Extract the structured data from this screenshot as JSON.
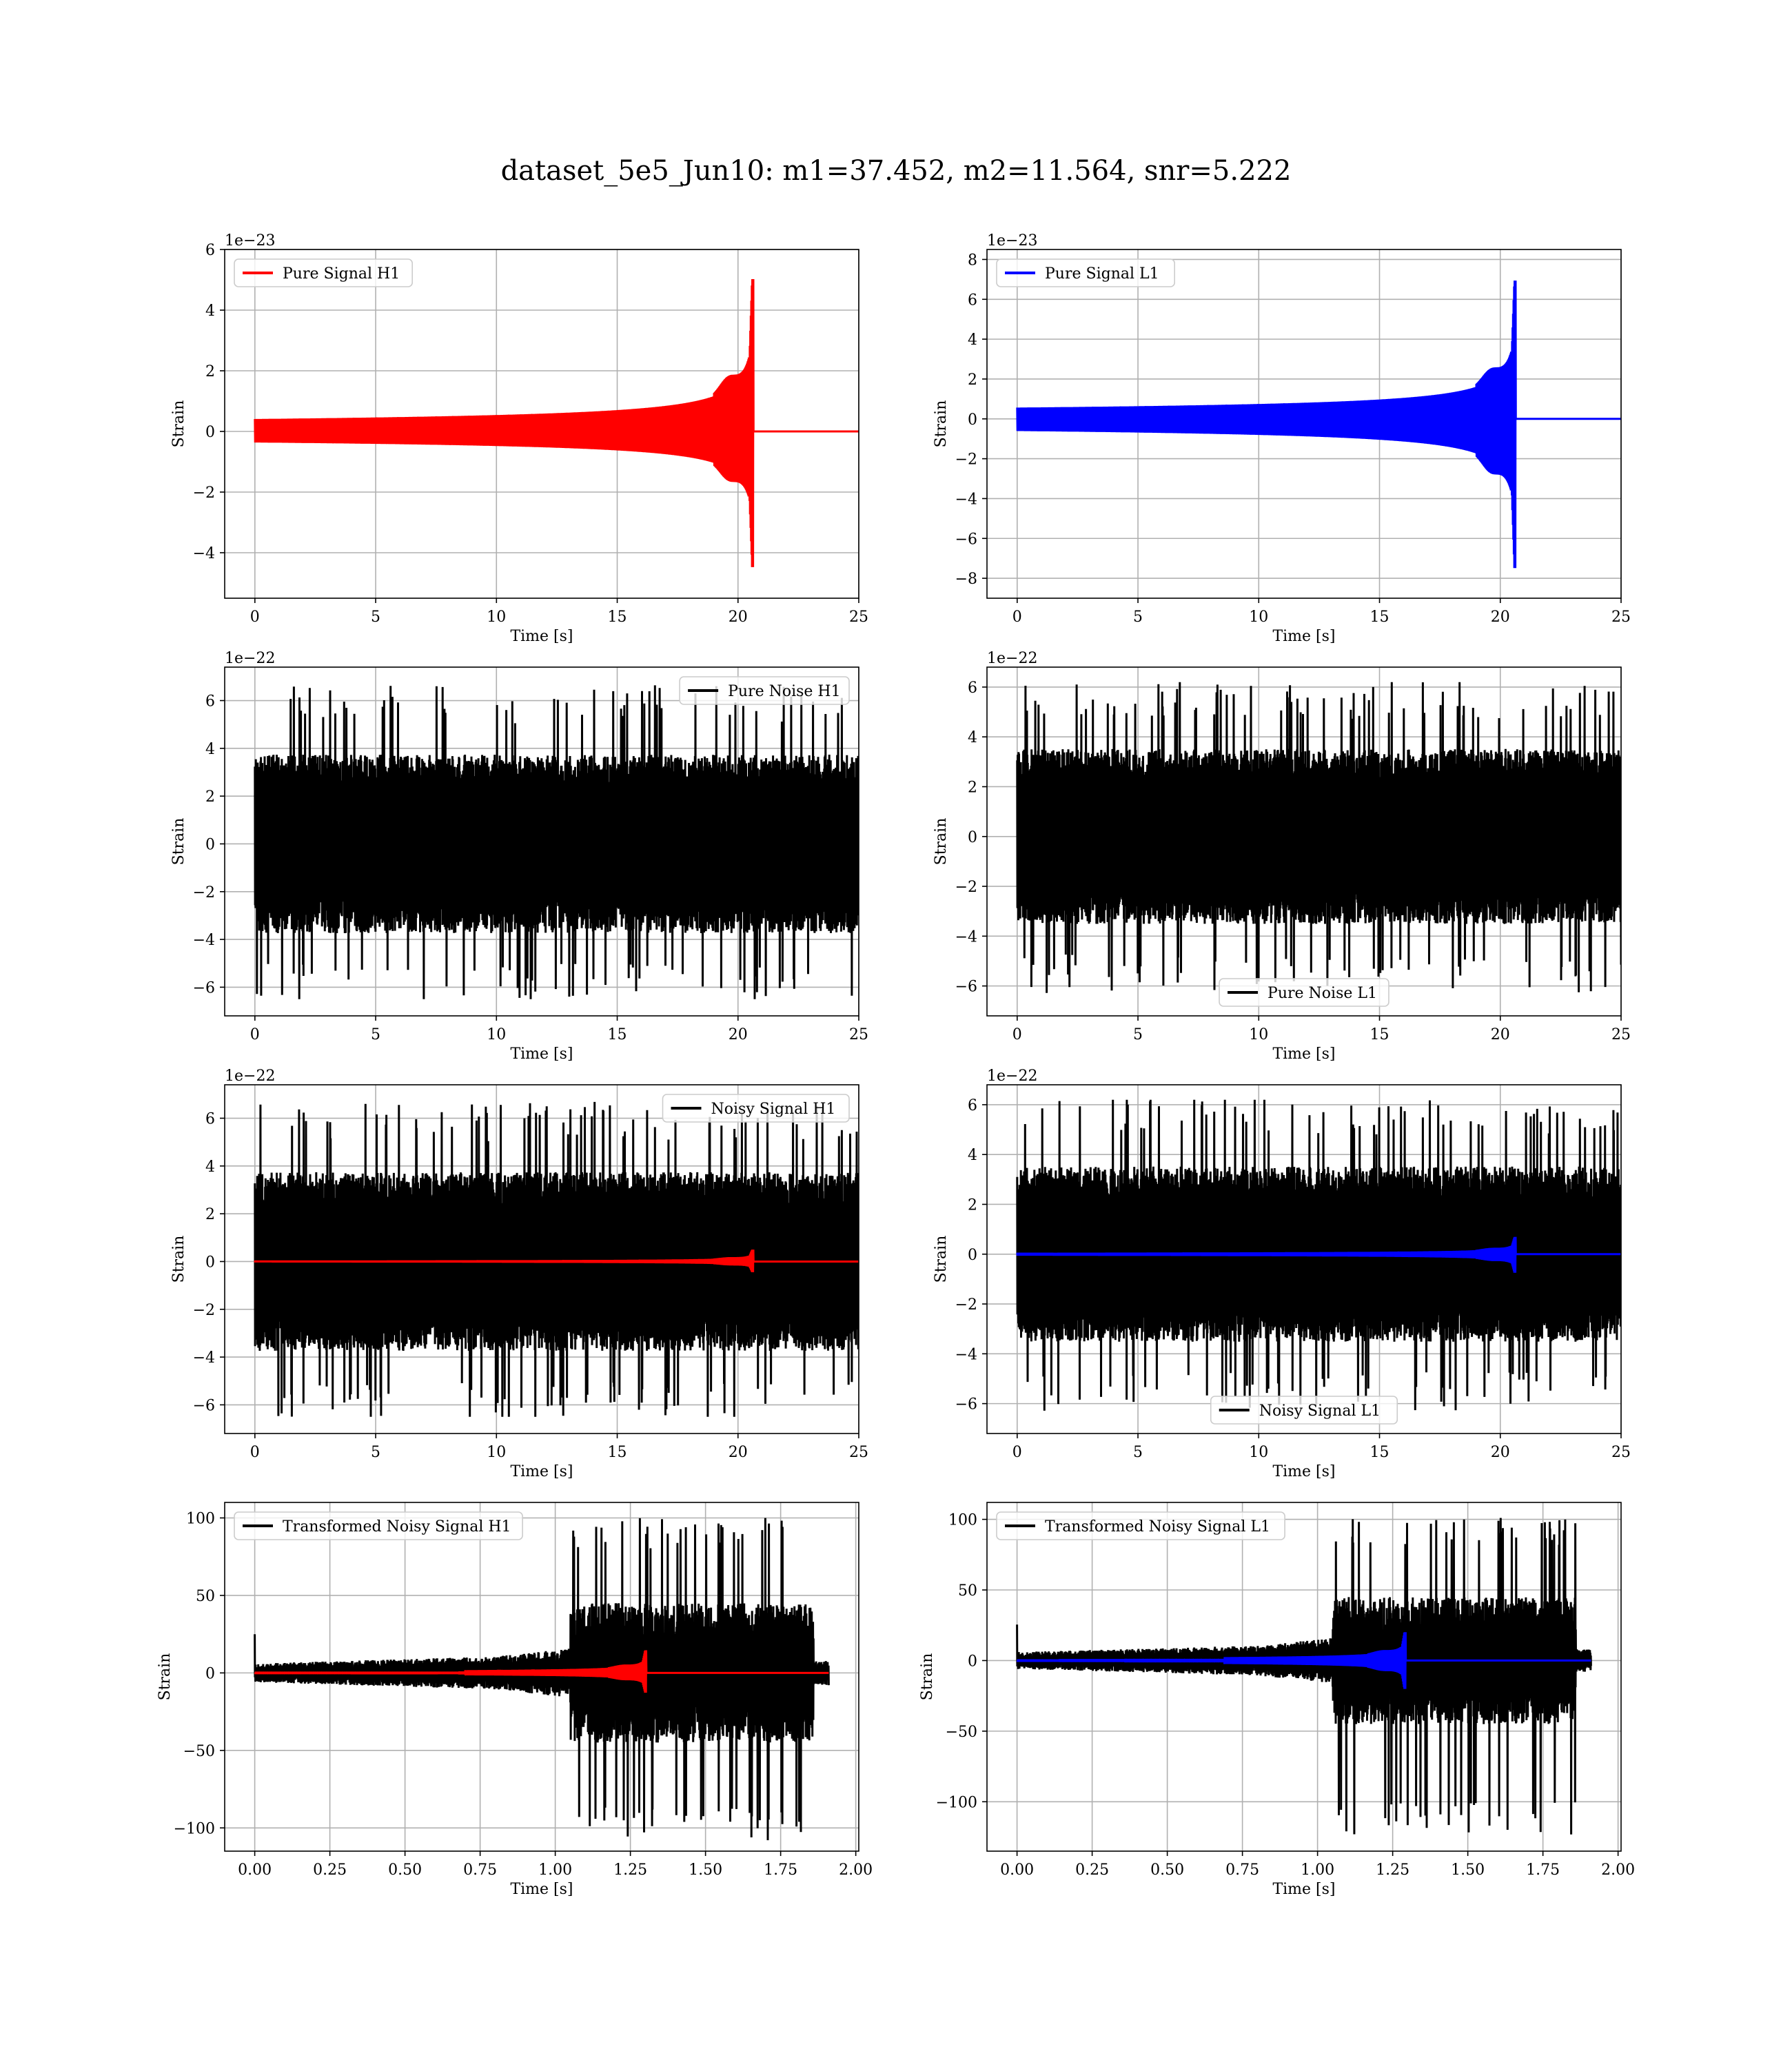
{
  "figure": {
    "title": "dataset_5e5_Jun10: m1=37.452, m2=11.564, snr=5.222"
  },
  "chart_data": [
    {
      "type": "line",
      "title": "",
      "xlabel": "Time [s]",
      "ylabel": "Strain",
      "offset_text": "1e−23",
      "xlim": [
        -1.25,
        25.0
      ],
      "ylim": [
        -5.5,
        6.0
      ],
      "xticks": [
        0,
        5,
        10,
        15,
        20,
        25
      ],
      "xtick_labels": [
        "0",
        "5",
        "10",
        "15",
        "20",
        "25"
      ],
      "yticks": [
        -4,
        -2,
        0,
        2,
        4,
        6
      ],
      "ytick_labels": [
        "−4",
        "−2",
        "0",
        "2",
        "4",
        "6"
      ],
      "grid": true,
      "legend_loc": "upper left",
      "series": [
        {
          "name": "Pure Signal H1",
          "color": "#ff0000",
          "kind": "chirp",
          "x_range": [
            0,
            25
          ],
          "merger_time": 20.6,
          "peak_max": 5.5,
          "peak_min": -4.9
        }
      ]
    },
    {
      "type": "line",
      "title": "",
      "xlabel": "Time [s]",
      "ylabel": "Strain",
      "offset_text": "1e−23",
      "xlim": [
        -1.25,
        25.0
      ],
      "ylim": [
        -9.0,
        8.5
      ],
      "xticks": [
        0,
        5,
        10,
        15,
        20,
        25
      ],
      "xtick_labels": [
        "0",
        "5",
        "10",
        "15",
        "20",
        "25"
      ],
      "yticks": [
        -8,
        -6,
        -4,
        -2,
        0,
        2,
        4,
        6,
        8
      ],
      "ytick_labels": [
        "−8",
        "−6",
        "−4",
        "−2",
        "0",
        "2",
        "4",
        "6",
        "8"
      ],
      "grid": true,
      "legend_loc": "upper left",
      "series": [
        {
          "name": "Pure Signal L1",
          "color": "#0000ff",
          "kind": "chirp",
          "x_range": [
            0,
            25
          ],
          "merger_time": 20.6,
          "peak_max": 7.6,
          "peak_min": -8.2
        }
      ]
    },
    {
      "type": "line",
      "title": "",
      "xlabel": "Time [s]",
      "ylabel": "Strain",
      "offset_text": "1e−22",
      "xlim": [
        -1.25,
        25.0
      ],
      "ylim": [
        -7.2,
        7.4
      ],
      "xticks": [
        0,
        5,
        10,
        15,
        20,
        25
      ],
      "xtick_labels": [
        "0",
        "5",
        "10",
        "15",
        "20",
        "25"
      ],
      "yticks": [
        -6,
        -4,
        -2,
        0,
        2,
        4,
        6
      ],
      "ytick_labels": [
        "−6",
        "−4",
        "−2",
        "0",
        "2",
        "4",
        "6"
      ],
      "grid": true,
      "legend_loc": "upper right",
      "series": [
        {
          "name": "Pure Noise H1",
          "color": "#000000",
          "kind": "noise",
          "x_range": [
            0,
            25
          ],
          "max": 6.9,
          "min": -6.5
        }
      ]
    },
    {
      "type": "line",
      "title": "",
      "xlabel": "Time [s]",
      "ylabel": "Strain",
      "offset_text": "1e−22",
      "xlim": [
        -1.25,
        25.0
      ],
      "ylim": [
        -7.2,
        6.8
      ],
      "xticks": [
        0,
        5,
        10,
        15,
        20,
        25
      ],
      "xtick_labels": [
        "0",
        "5",
        "10",
        "15",
        "20",
        "25"
      ],
      "yticks": [
        -6,
        -4,
        -2,
        0,
        2,
        4,
        6
      ],
      "ytick_labels": [
        "−6",
        "−4",
        "−2",
        "0",
        "2",
        "4",
        "6"
      ],
      "grid": true,
      "legend_loc": "lower center",
      "series": [
        {
          "name": "Pure Noise L1",
          "color": "#000000",
          "kind": "noise",
          "x_range": [
            0,
            25
          ],
          "max": 6.2,
          "min": -6.4
        }
      ]
    },
    {
      "type": "line",
      "title": "",
      "xlabel": "Time [s]",
      "ylabel": "Strain",
      "offset_text": "1e−22",
      "xlim": [
        -1.25,
        25.0
      ],
      "ylim": [
        -7.2,
        7.4
      ],
      "xticks": [
        0,
        5,
        10,
        15,
        20,
        25
      ],
      "xtick_labels": [
        "0",
        "5",
        "10",
        "15",
        "20",
        "25"
      ],
      "yticks": [
        -6,
        -4,
        -2,
        0,
        2,
        4,
        6
      ],
      "ytick_labels": [
        "−6",
        "−4",
        "−2",
        "0",
        "2",
        "4",
        "6"
      ],
      "grid": true,
      "legend_loc": "upper right",
      "series": [
        {
          "name": "Noisy Signal H1",
          "color": "#000000",
          "kind": "noise",
          "x_range": [
            0,
            25
          ],
          "max": 6.9,
          "min": -6.5
        },
        {
          "color": "#ff0000",
          "kind": "chirp",
          "x_range": [
            0,
            25
          ],
          "merger_time": 20.6,
          "peak_max": 0.55,
          "peak_min": -0.49
        }
      ]
    },
    {
      "type": "line",
      "title": "",
      "xlabel": "Time [s]",
      "ylabel": "Strain",
      "offset_text": "1e−22",
      "xlim": [
        -1.25,
        25.0
      ],
      "ylim": [
        -7.2,
        6.8
      ],
      "xticks": [
        0,
        5,
        10,
        15,
        20,
        25
      ],
      "xtick_labels": [
        "0",
        "5",
        "10",
        "15",
        "20",
        "25"
      ],
      "yticks": [
        -6,
        -4,
        -2,
        0,
        2,
        4,
        6
      ],
      "ytick_labels": [
        "−6",
        "−4",
        "−2",
        "0",
        "2",
        "4",
        "6"
      ],
      "grid": true,
      "legend_loc": "lower center",
      "series": [
        {
          "name": "Noisy Signal L1",
          "color": "#000000",
          "kind": "noise",
          "x_range": [
            0,
            25
          ],
          "max": 6.2,
          "min": -6.4
        },
        {
          "color": "#0000ff",
          "kind": "chirp",
          "x_range": [
            0,
            25
          ],
          "merger_time": 20.6,
          "peak_max": 0.76,
          "peak_min": -0.82
        }
      ]
    },
    {
      "type": "line",
      "title": "",
      "xlabel": "Time [s]",
      "ylabel": "Strain",
      "offset_text": "",
      "xlim": [
        -0.1,
        2.01
      ],
      "ylim": [
        -115,
        110
      ],
      "xticks": [
        0,
        0.25,
        0.5,
        0.75,
        1.0,
        1.25,
        1.5,
        1.75,
        2.0
      ],
      "xtick_labels": [
        "0.00",
        "0.25",
        "0.50",
        "0.75",
        "1.00",
        "1.25",
        "1.50",
        "1.75",
        "2.00"
      ],
      "yticks": [
        -100,
        -50,
        0,
        50,
        100
      ],
      "ytick_labels": [
        "−100",
        "−50",
        "0",
        "50",
        "100"
      ],
      "grid": true,
      "legend_loc": "upper left",
      "series": [
        {
          "name": "Transformed Noisy Signal H1",
          "color": "#000000",
          "kind": "transformed",
          "x_range": [
            0,
            1.91
          ],
          "max": 100,
          "min": -108
        },
        {
          "color": "#ff0000",
          "kind": "tchirp",
          "x_range": [
            0,
            1.91
          ],
          "merger_time": 1.3,
          "peak_max": 16,
          "peak_min": -14
        }
      ]
    },
    {
      "type": "line",
      "title": "",
      "xlabel": "Time [s]",
      "ylabel": "Strain",
      "offset_text": "",
      "xlim": [
        -0.1,
        2.01
      ],
      "ylim": [
        -135,
        112
      ],
      "xticks": [
        0,
        0.25,
        0.5,
        0.75,
        1.0,
        1.25,
        1.5,
        1.75,
        2.0
      ],
      "xtick_labels": [
        "0.00",
        "0.25",
        "0.50",
        "0.75",
        "1.00",
        "1.25",
        "1.50",
        "1.75",
        "2.00"
      ],
      "yticks": [
        -100,
        -50,
        0,
        50,
        100
      ],
      "ytick_labels": [
        "−100",
        "−50",
        "0",
        "50",
        "100"
      ],
      "grid": true,
      "legend_loc": "upper left",
      "series": [
        {
          "name": "Transformed Noisy Signal L1",
          "color": "#000000",
          "kind": "transformed",
          "x_range": [
            0,
            1.91
          ],
          "max": 102,
          "min": -124
        },
        {
          "color": "#0000ff",
          "kind": "tchirp",
          "x_range": [
            0,
            1.91
          ],
          "merger_time": 1.29,
          "peak_max": 22,
          "peak_min": -22
        }
      ]
    }
  ]
}
